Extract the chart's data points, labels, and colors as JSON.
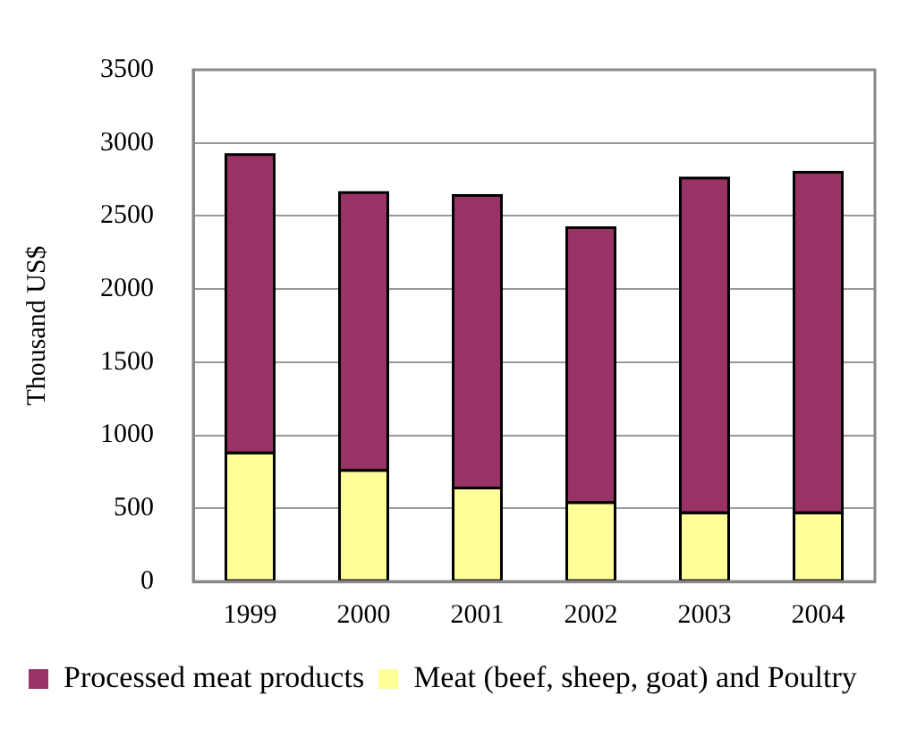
{
  "chart_data": {
    "type": "bar",
    "ylabel": "Thousand US$",
    "categories": [
      "1999",
      "2000",
      "2001",
      "2002",
      "2003",
      "2004"
    ],
    "stacked": true,
    "series": [
      {
        "name": "Meat (beef, sheep, goat) and Poultry",
        "color": "#ffff99",
        "values": [
          880,
          760,
          640,
          540,
          470,
          470
        ]
      },
      {
        "name": "Processed meat products",
        "color": "#993366",
        "values": [
          2040,
          1900,
          2000,
          1880,
          2290,
          2330
        ]
      }
    ],
    "ylim": [
      0,
      3500
    ],
    "yticks": [
      0,
      500,
      1000,
      1500,
      2000,
      2500,
      3000,
      3500
    ],
    "grid": "y",
    "legend": "bottom"
  }
}
